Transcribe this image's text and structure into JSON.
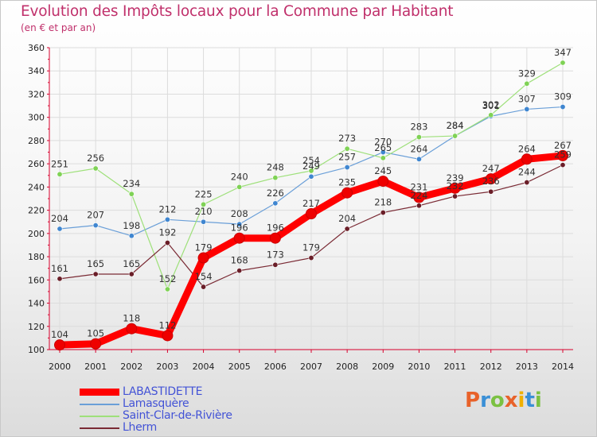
{
  "title": "Evolution des Impôts locaux pour la Commune par Habitant",
  "subtitle": "(en € et par an)",
  "logo_text": "Proxiti",
  "colors": {
    "title": "#c0306b",
    "axis": "#d8002c",
    "legend_text": "#4353d6"
  },
  "chart_data": {
    "type": "line",
    "title": "Evolution des Impôts locaux pour la Commune par Habitant",
    "subtitle": "(en € et par an)",
    "xlabel": "",
    "ylabel": "",
    "x": [
      2000,
      2001,
      2002,
      2003,
      2004,
      2005,
      2006,
      2007,
      2008,
      2009,
      2010,
      2011,
      2012,
      2013,
      2014
    ],
    "ylim": [
      100,
      360
    ],
    "yticks": [
      100,
      120,
      140,
      160,
      180,
      200,
      220,
      240,
      260,
      280,
      300,
      320,
      340,
      360
    ],
    "grid": true,
    "legend_position": "bottom-left",
    "series": [
      {
        "name": "LABASTIDETTE",
        "color": "#ff0000",
        "marker": "#ee0000",
        "bold": true,
        "values": [
          104,
          105,
          118,
          112,
          179,
          196,
          196,
          217,
          235,
          245,
          231,
          239,
          247,
          264,
          267
        ]
      },
      {
        "name": "Lamasquère",
        "color": "#6a9fd8",
        "marker": "#3f86d0",
        "values": [
          204,
          207,
          198,
          212,
          210,
          208,
          226,
          249,
          257,
          270,
          264,
          284,
          301,
          307,
          309
        ]
      },
      {
        "name": "Saint-Clar-de-Rivière",
        "color": "#9ee07a",
        "marker": "#7fd255",
        "values": [
          251,
          256,
          234,
          152,
          225,
          240,
          248,
          254,
          273,
          265,
          283,
          284,
          302,
          329,
          347
        ]
      },
      {
        "name": "Lherm",
        "color": "#7a2a34",
        "marker": "#6a1e28",
        "values": [
          161,
          165,
          165,
          192,
          154,
          168,
          173,
          179,
          204,
          218,
          224,
          232,
          236,
          244,
          259
        ]
      }
    ],
    "labels": [
      [
        "104",
        "105",
        "118",
        "112",
        "179",
        "196",
        "196",
        "217",
        "235",
        "245",
        "231",
        "239",
        "247",
        "264",
        "267"
      ],
      [
        "204",
        "207",
        "198",
        "212",
        "210",
        "208",
        "226",
        "249",
        "257",
        "270",
        "264",
        "284",
        "301",
        "307",
        "309"
      ],
      [
        "251",
        "256",
        "234",
        "152",
        "225",
        "240",
        "248",
        "254",
        "273",
        "265",
        "283",
        "284",
        "302",
        "329",
        "347"
      ],
      [
        "161",
        "165",
        "165",
        "192",
        "154",
        "168",
        "173",
        "179",
        "204",
        "218",
        "224",
        "232",
        "236",
        "244",
        "259"
      ]
    ]
  }
}
